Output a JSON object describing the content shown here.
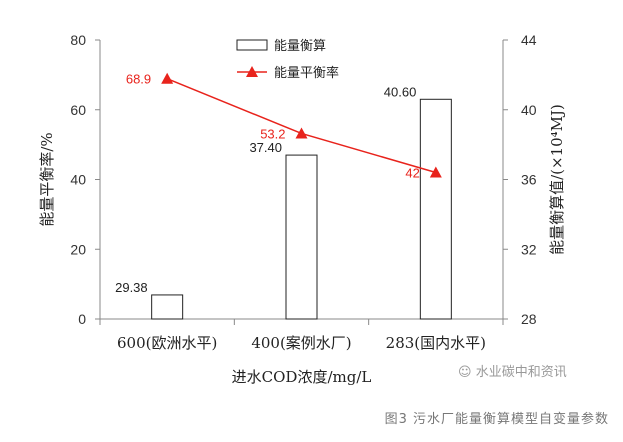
{
  "chart_data": {
    "type": "bar+line",
    "categories": [
      "600(欧洲水平)",
      "400(案例水厂)",
      "283(国内水平)"
    ],
    "xlabel": "进水COD浓度/mg/L",
    "ylabel_left": "能量平衡率/%",
    "ylabel_right": "能量衡算值/(×10⁴MJ)",
    "ylim_left": [
      0,
      80
    ],
    "yticks_left": [
      0,
      20,
      40,
      60,
      80
    ],
    "ylim_right": [
      28,
      44
    ],
    "yticks_right": [
      28,
      32,
      36,
      40,
      44
    ],
    "series": [
      {
        "name": "能量衡算",
        "type": "bar",
        "axis": "right",
        "values": [
          29.38,
          37.4,
          40.6
        ],
        "labels": [
          "29.38",
          "37.40",
          "40.60"
        ],
        "color": "#ffffff"
      },
      {
        "name": "能量平衡率",
        "type": "line",
        "axis": "left",
        "values": [
          68.9,
          53.2,
          42
        ],
        "labels": [
          "68.9",
          "53.2",
          "42"
        ],
        "color": "#e8231c"
      }
    ],
    "legend": "top-center",
    "grid": false
  },
  "caption": "图3 污水厂能量衡算模型自变量参数",
  "watermark": "水业碳中和资讯"
}
